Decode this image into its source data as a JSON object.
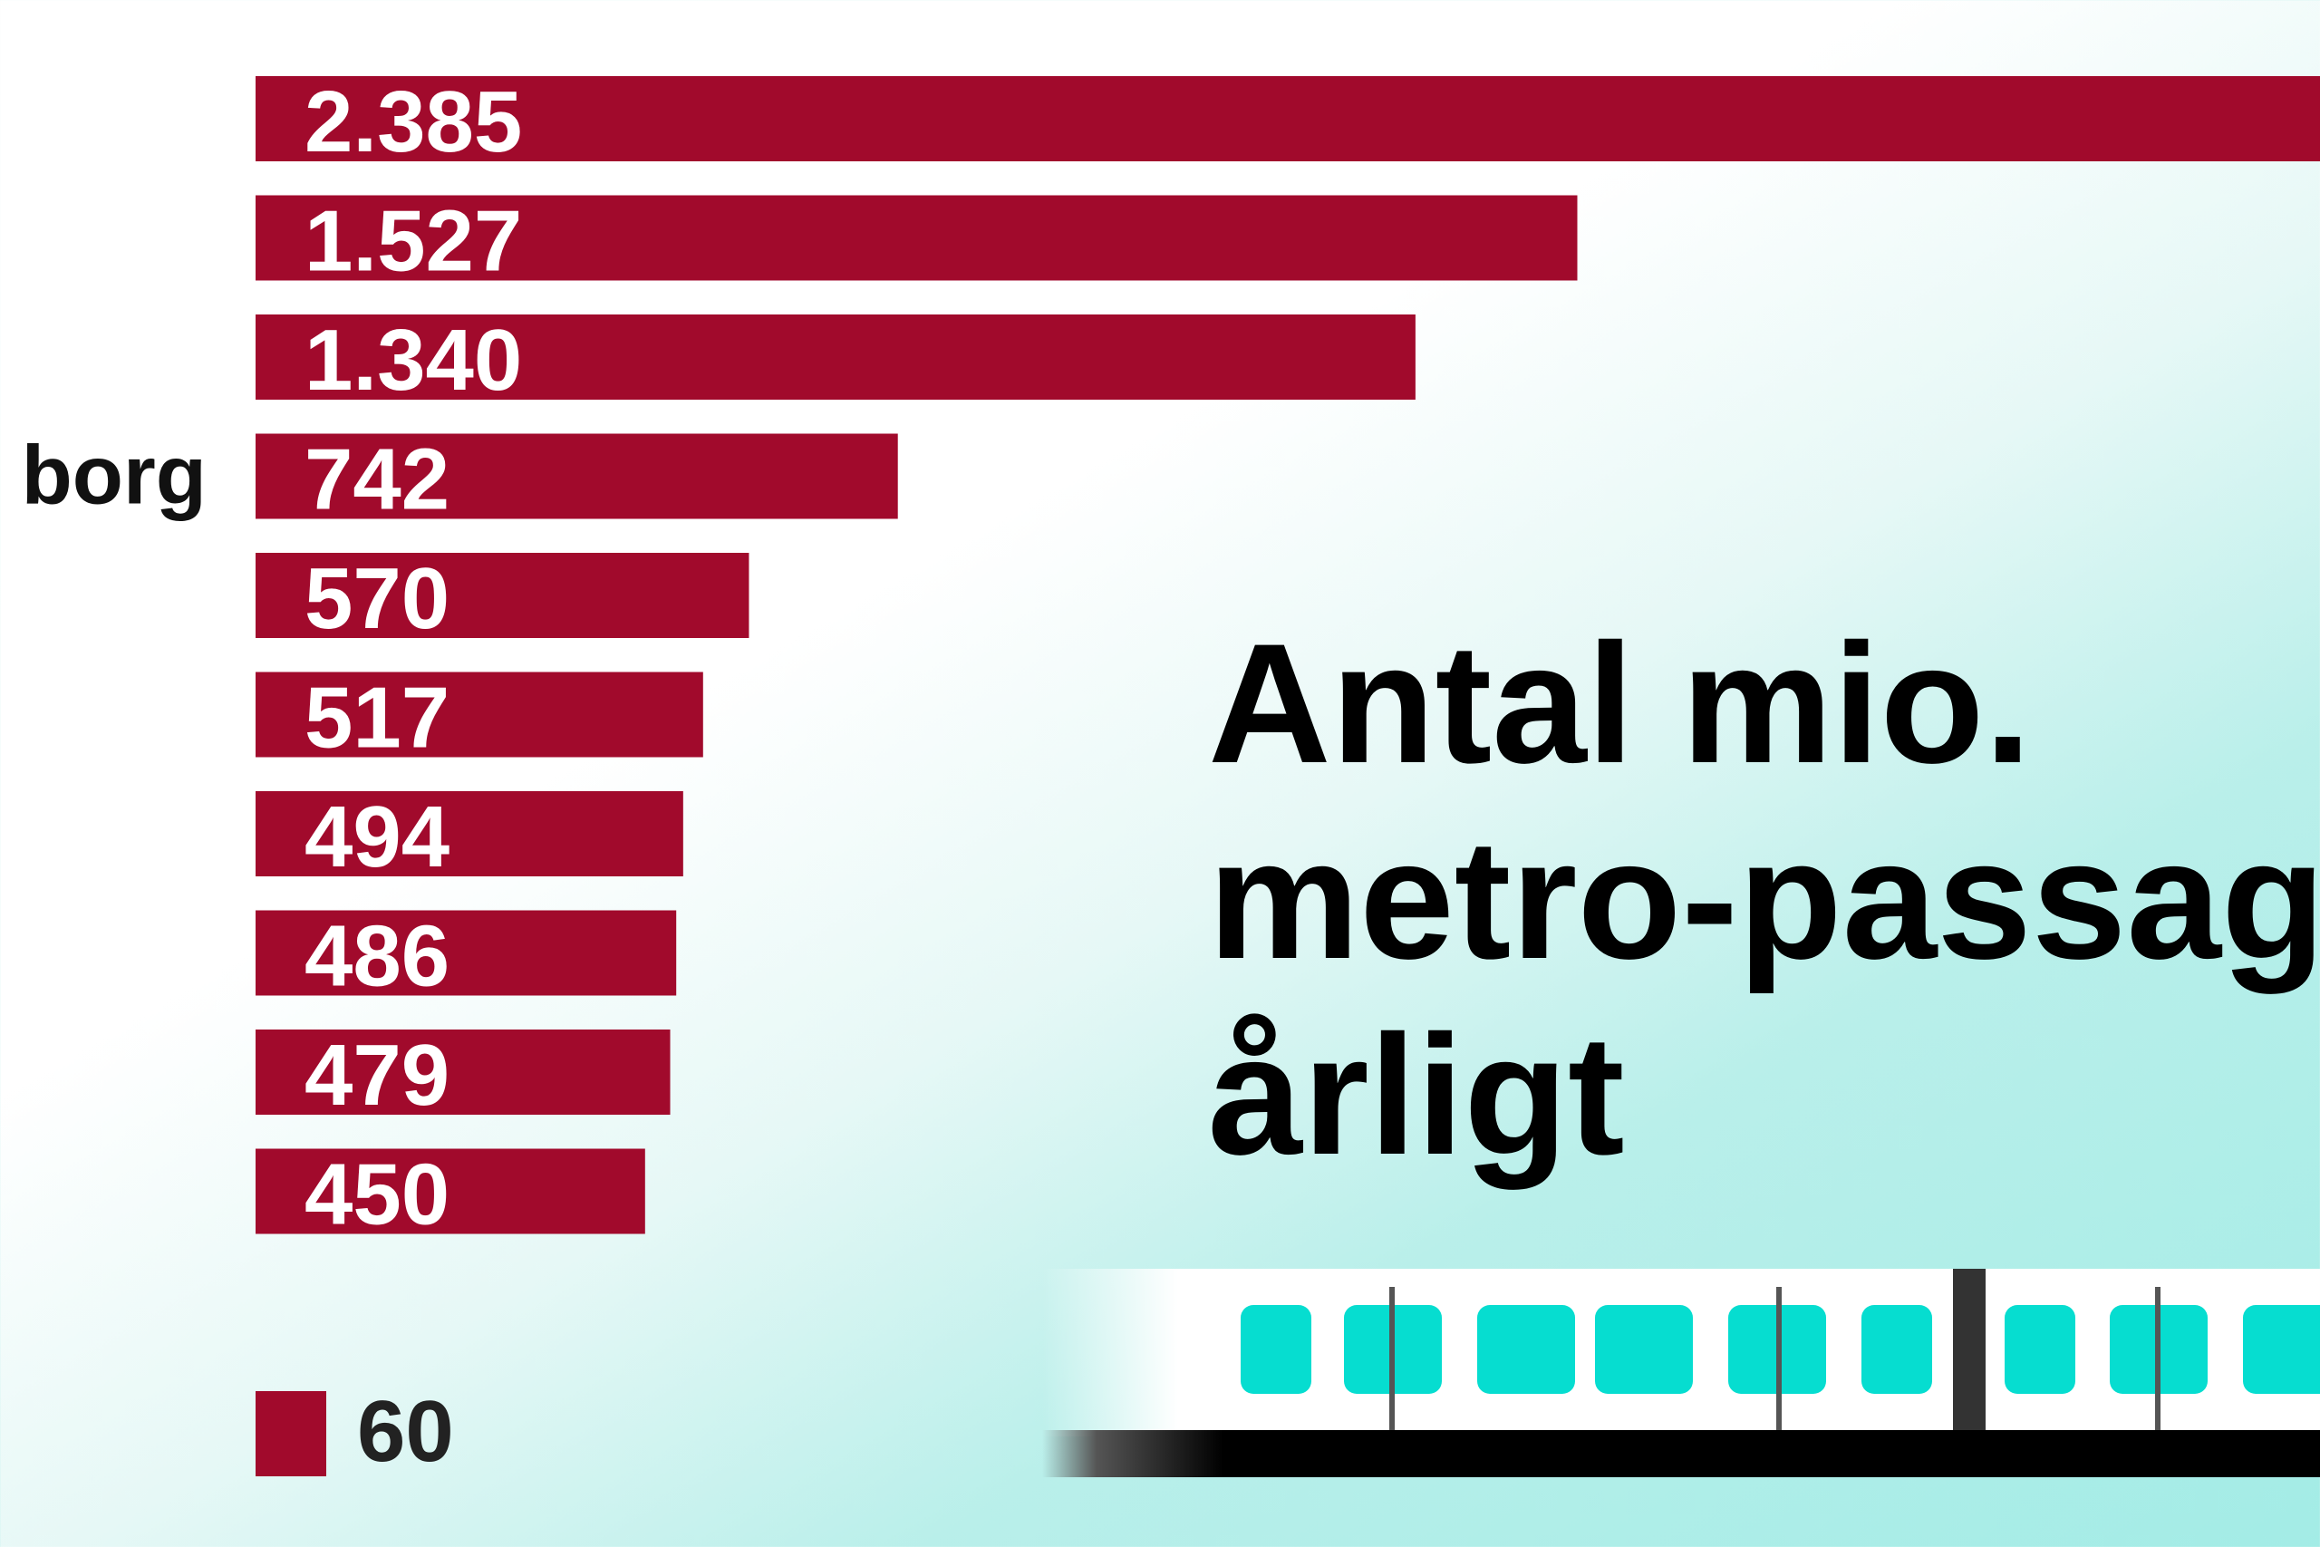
{
  "chart_data": {
    "type": "bar",
    "orientation": "horizontal",
    "title": "Antal mio.\nmetro-passag\nårligt",
    "categories": [
      "",
      "",
      "",
      "borg",
      "",
      "",
      "",
      "",
      "",
      ""
    ],
    "values": [
      2385,
      1527,
      1340,
      742,
      570,
      517,
      494,
      486,
      479,
      450
    ],
    "value_labels": [
      "2.385",
      "1.527",
      "1.340",
      "742",
      "570",
      "517",
      "494",
      "486",
      "479",
      "450"
    ],
    "legend": {
      "value": 60,
      "label": "60"
    },
    "xlim": [
      0,
      2385
    ],
    "grid": false,
    "colors": {
      "bar": "#a10a2c",
      "train_window": "#06ddd0"
    }
  },
  "train": {
    "icon": "metro-train-icon"
  }
}
